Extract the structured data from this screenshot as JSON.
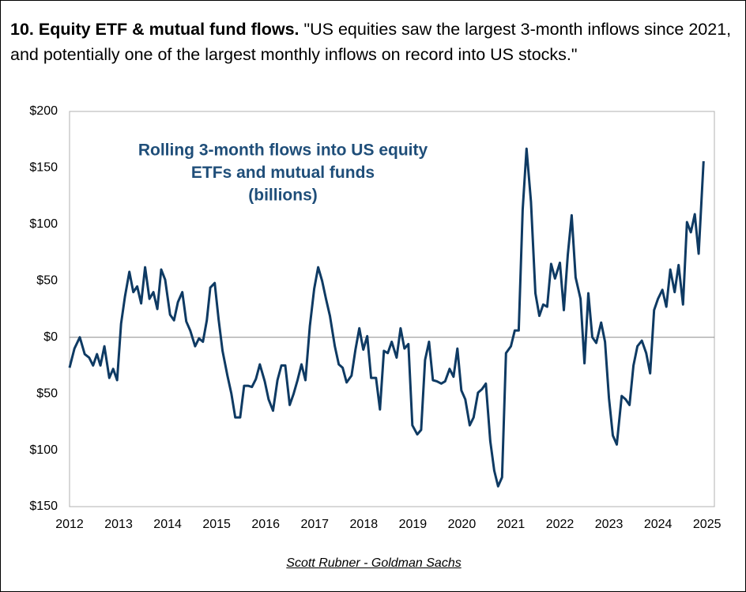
{
  "header": {
    "label": "10. Equity ETF & mutual fund flows.",
    "quote": "\"US equities saw the largest 3-month inflows since 2021, and potentially one of the largest monthly inflows on record into US stocks.\""
  },
  "chart_data": {
    "type": "line",
    "title": [
      "Rolling 3-month flows into US equity",
      "ETFs and mutual funds",
      "(billions)"
    ],
    "color": "#0e3a63",
    "x": [
      2012.0,
      2012.1,
      2012.21,
      2012.31,
      2012.4,
      2012.48,
      2012.56,
      2012.63,
      2012.71,
      2012.81,
      2012.89,
      2012.97,
      2013.05,
      2013.13,
      2013.22,
      2013.3,
      2013.38,
      2013.46,
      2013.54,
      2013.63,
      2013.71,
      2013.79,
      2013.87,
      2013.95,
      2014.05,
      2014.13,
      2014.21,
      2014.3,
      2014.38,
      2014.46,
      2014.56,
      2014.64,
      2014.72,
      2014.8,
      2014.87,
      2014.96,
      2015.04,
      2015.12,
      2015.22,
      2015.3,
      2015.38,
      2015.48,
      2015.56,
      2015.64,
      2015.72,
      2015.8,
      2015.88,
      2015.98,
      2016.06,
      2016.15,
      2016.24,
      2016.32,
      2016.4,
      2016.49,
      2016.57,
      2016.65,
      2016.73,
      2016.81,
      2016.9,
      2016.99,
      2017.07,
      2017.15,
      2017.23,
      2017.31,
      2017.41,
      2017.49,
      2017.57,
      2017.65,
      2017.75,
      2017.83,
      2017.91,
      2017.99,
      2018.07,
      2018.15,
      2018.25,
      2018.33,
      2018.41,
      2018.49,
      2018.57,
      2018.67,
      2018.75,
      2018.83,
      2018.91,
      2018.99,
      2019.09,
      2019.17,
      2019.25,
      2019.33,
      2019.41,
      2019.49,
      2019.58,
      2019.66,
      2019.75,
      2019.83,
      2019.91,
      2019.99,
      2020.07,
      2020.16,
      2020.24,
      2020.33,
      2020.41,
      2020.49,
      2020.58,
      2020.66,
      2020.74,
      2020.82,
      2020.9,
      2021.0,
      2021.08,
      2021.16,
      2021.24,
      2021.32,
      2021.41,
      2021.5,
      2021.58,
      2021.66,
      2021.74,
      2021.82,
      2021.9,
      2022.0,
      2022.08,
      2022.16,
      2022.24,
      2022.32,
      2022.42,
      2022.5,
      2022.58,
      2022.66,
      2022.74,
      2022.84,
      2022.92,
      2023.0,
      2023.08,
      2023.16,
      2023.26,
      2023.34,
      2023.42,
      2023.5,
      2023.58,
      2023.67,
      2023.76,
      2023.84,
      2023.92,
      2024.0,
      2024.09,
      2024.17,
      2024.25,
      2024.34,
      2024.42,
      2024.51,
      2024.59,
      2024.67,
      2024.75,
      2024.83,
      2024.93
    ],
    "values": [
      -27,
      -10,
      0,
      -15,
      -18,
      -25,
      -15,
      -25,
      -8,
      -36,
      -28,
      -38,
      12,
      36,
      58,
      40,
      45,
      30,
      62,
      34,
      40,
      25,
      60,
      51,
      20,
      15,
      31,
      40,
      14,
      6,
      -8,
      -1,
      -4,
      15,
      44,
      48,
      16,
      -12,
      -34,
      -50,
      -71,
      -71,
      -43,
      -43,
      -44,
      -37,
      -24,
      -39,
      -55,
      -65,
      -38,
      -25,
      -25,
      -60,
      -50,
      -38,
      -24,
      -38,
      10,
      43,
      62,
      50,
      34,
      19,
      -8,
      -24,
      -27,
      -40,
      -34,
      -11,
      8,
      -11,
      1,
      -36,
      -36,
      -64,
      -12,
      -14,
      -4,
      -18,
      8,
      -10,
      -6,
      -78,
      -86,
      -82,
      -20,
      -4,
      -38,
      -39,
      -41,
      -39,
      -28,
      -35,
      -10,
      -47,
      -55,
      -78,
      -71,
      -49,
      -46,
      -41,
      -92,
      -118,
      -132,
      -124,
      -14,
      -8,
      6,
      6,
      113,
      167,
      120,
      39,
      19,
      29,
      27,
      65,
      52,
      66,
      24,
      73,
      108,
      53,
      34,
      -23,
      39,
      0,
      -5,
      13,
      -4,
      -54,
      -87,
      -95,
      -52,
      -55,
      -60,
      -25,
      -8,
      -3,
      -14,
      -32,
      24,
      34,
      42,
      27,
      60,
      40,
      64,
      29,
      102,
      93,
      109,
      74,
      156
    ],
    "xlim": [
      2012,
      2025.15
    ],
    "xticks": [
      2012,
      2013,
      2014,
      2015,
      2016,
      2017,
      2018,
      2019,
      2020,
      2021,
      2022,
      2023,
      2024,
      2025
    ],
    "ylim": [
      -150,
      200
    ],
    "yticks": [
      {
        "value": 200,
        "label": "$200"
      },
      {
        "value": 150,
        "label": "$150"
      },
      {
        "value": 100,
        "label": "$100"
      },
      {
        "value": 50,
        "label": "$50"
      },
      {
        "value": 0,
        "label": "$0"
      },
      {
        "value": -50,
        "label": "$50"
      },
      {
        "value": -100,
        "label": "$100"
      },
      {
        "value": -150,
        "label": "$150"
      }
    ]
  },
  "source": "Scott Rubner - Goldman Sachs"
}
